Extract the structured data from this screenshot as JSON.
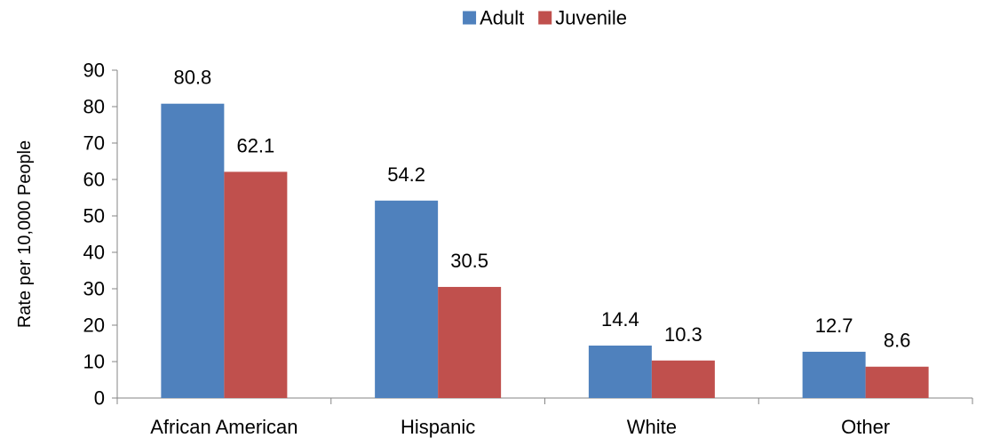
{
  "chart_data": {
    "type": "bar",
    "title": "",
    "xlabel": "",
    "ylabel": "Rate per 10,000 People",
    "ylim": [
      0,
      90
    ],
    "yticks": [
      0,
      10,
      20,
      30,
      40,
      50,
      60,
      70,
      80,
      90
    ],
    "categories": [
      "African American",
      "Hispanic",
      "White",
      "Other"
    ],
    "series": [
      {
        "name": "Adult",
        "color": "#4F81BD",
        "values": [
          80.8,
          54.2,
          14.4,
          12.7
        ]
      },
      {
        "name": "Juvenile",
        "color": "#C0504D",
        "values": [
          62.1,
          30.5,
          10.3,
          8.6
        ]
      }
    ],
    "data_labels": [
      [
        "80.8",
        "54.2",
        "14.4",
        "12.7"
      ],
      [
        "62.1",
        "30.5",
        "10.3",
        "8.6"
      ]
    ],
    "legend": "top-center",
    "grid": false
  }
}
